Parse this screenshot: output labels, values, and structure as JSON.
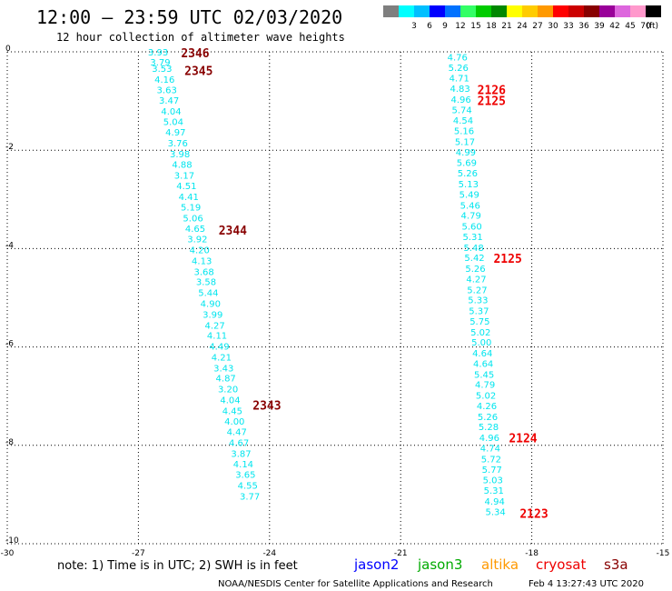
{
  "header": {
    "title": "12:00 – 23:59 UTC 02/03/2020",
    "subtitle": "12 hour collection of altimeter wave heights"
  },
  "color_scale": {
    "unit": "(ft)",
    "bins": [
      {
        "label": "",
        "color": "#7f7f7f"
      },
      {
        "label": "3",
        "color": "#00ffff"
      },
      {
        "label": "6",
        "color": "#00bfff"
      },
      {
        "label": "9",
        "color": "#0000ff"
      },
      {
        "label": "12",
        "color": "#0072ff"
      },
      {
        "label": "15",
        "color": "#33ff66"
      },
      {
        "label": "18",
        "color": "#00cc00"
      },
      {
        "label": "21",
        "color": "#008800"
      },
      {
        "label": "24",
        "color": "#ffff00"
      },
      {
        "label": "27",
        "color": "#ffcc00"
      },
      {
        "label": "30",
        "color": "#ff9900"
      },
      {
        "label": "33",
        "color": "#ff0000"
      },
      {
        "label": "36",
        "color": "#cc0000"
      },
      {
        "label": "39",
        "color": "#880000"
      },
      {
        "label": "42",
        "color": "#990099"
      },
      {
        "label": "45",
        "color": "#dd66dd"
      },
      {
        "label": "70",
        "color": "#ff99cc"
      },
      {
        "label": "",
        "color": "#000000"
      }
    ]
  },
  "axes": {
    "x_ticks": [
      "-30",
      "-27",
      "-24",
      "-21",
      "-18",
      "-15"
    ],
    "y_ticks": [
      "0",
      "-2",
      "-4",
      "-6",
      "-8",
      "-10"
    ],
    "xlim": [
      -30,
      -15
    ],
    "ylim": [
      -10,
      0
    ]
  },
  "chart_data": {
    "type": "scatter",
    "tracks": [
      {
        "color": "#00e5ee",
        "points": [
          {
            "lon": -26.55,
            "lat": 0.0,
            "swh": "3.93"
          },
          {
            "lon": -26.5,
            "lat": -0.2,
            "swh": "3.79"
          },
          {
            "lon": -26.46,
            "lat": -0.33,
            "swh": "3.53"
          },
          {
            "lon": -26.4,
            "lat": -0.55,
            "swh": "4.16"
          },
          {
            "lon": -26.35,
            "lat": -0.77,
            "swh": "3.63"
          },
          {
            "lon": -26.3,
            "lat": -0.98,
            "swh": "3.47"
          },
          {
            "lon": -26.25,
            "lat": -1.2,
            "swh": "4.04"
          },
          {
            "lon": -26.2,
            "lat": -1.41,
            "swh": "5.04"
          },
          {
            "lon": -26.15,
            "lat": -1.63,
            "swh": "4.97"
          },
          {
            "lon": -26.1,
            "lat": -1.85,
            "swh": "3.76"
          },
          {
            "lon": -26.05,
            "lat": -2.07,
            "swh": "3.98"
          },
          {
            "lon": -26.0,
            "lat": -2.28,
            "swh": "4.88"
          },
          {
            "lon": -25.95,
            "lat": -2.5,
            "swh": "3.17"
          },
          {
            "lon": -25.9,
            "lat": -2.72,
            "swh": "4.51"
          },
          {
            "lon": -25.85,
            "lat": -2.94,
            "swh": "4.41"
          },
          {
            "lon": -25.8,
            "lat": -3.15,
            "swh": "5.19"
          },
          {
            "lon": -25.75,
            "lat": -3.37,
            "swh": "5.06"
          },
          {
            "lon": -25.7,
            "lat": -3.59,
            "swh": "4.65"
          },
          {
            "lon": -25.65,
            "lat": -3.8,
            "swh": "3.92"
          },
          {
            "lon": -25.6,
            "lat": -4.02,
            "swh": "4.20"
          },
          {
            "lon": -25.55,
            "lat": -4.24,
            "swh": "4.13"
          },
          {
            "lon": -25.5,
            "lat": -4.46,
            "swh": "3.68"
          },
          {
            "lon": -25.45,
            "lat": -4.67,
            "swh": "3.58"
          },
          {
            "lon": -25.4,
            "lat": -4.89,
            "swh": "5.44"
          },
          {
            "lon": -25.35,
            "lat": -5.11,
            "swh": "4.90"
          },
          {
            "lon": -25.3,
            "lat": -5.33,
            "swh": "3.99"
          },
          {
            "lon": -25.25,
            "lat": -5.55,
            "swh": "4.27"
          },
          {
            "lon": -25.2,
            "lat": -5.76,
            "swh": "4.11"
          },
          {
            "lon": -25.15,
            "lat": -5.98,
            "swh": "4.49"
          },
          {
            "lon": -25.1,
            "lat": -6.2,
            "swh": "4.21"
          },
          {
            "lon": -25.05,
            "lat": -6.42,
            "swh": "3.43"
          },
          {
            "lon": -25.0,
            "lat": -6.63,
            "swh": "4.87"
          },
          {
            "lon": -24.95,
            "lat": -6.85,
            "swh": "3.20"
          },
          {
            "lon": -24.9,
            "lat": -7.07,
            "swh": "4.04"
          },
          {
            "lon": -24.85,
            "lat": -7.29,
            "swh": "4.45"
          },
          {
            "lon": -24.8,
            "lat": -7.5,
            "swh": "4.00"
          },
          {
            "lon": -24.75,
            "lat": -7.72,
            "swh": "4.47"
          },
          {
            "lon": -24.7,
            "lat": -7.94,
            "swh": "4.67"
          },
          {
            "lon": -24.65,
            "lat": -8.16,
            "swh": "3.87"
          },
          {
            "lon": -24.6,
            "lat": -8.37,
            "swh": "4.14"
          },
          {
            "lon": -24.55,
            "lat": -8.59,
            "swh": "3.65"
          },
          {
            "lon": -24.5,
            "lat": -8.81,
            "swh": "4.55"
          },
          {
            "lon": -24.45,
            "lat": -9.03,
            "swh": "3.77"
          }
        ],
        "pass_labels": [
          {
            "text": "2346",
            "color": "#880000",
            "lon": -25.7,
            "lat": -0.02
          },
          {
            "text": "2345",
            "color": "#880000",
            "lon": -25.62,
            "lat": -0.38
          },
          {
            "text": "2344",
            "color": "#880000",
            "lon": -24.84,
            "lat": -3.62
          },
          {
            "text": "2343",
            "color": "#880000",
            "lon": -24.06,
            "lat": -7.18
          }
        ]
      },
      {
        "color": "#00e5ee",
        "points": [
          {
            "lon": -19.7,
            "lat": -0.1,
            "swh": "4.76"
          },
          {
            "lon": -19.68,
            "lat": -0.31,
            "swh": "5.26"
          },
          {
            "lon": -19.66,
            "lat": -0.53,
            "swh": "4.71"
          },
          {
            "lon": -19.64,
            "lat": -0.74,
            "swh": "4.83"
          },
          {
            "lon": -19.62,
            "lat": -0.96,
            "swh": "4.96"
          },
          {
            "lon": -19.6,
            "lat": -1.17,
            "swh": "5.74"
          },
          {
            "lon": -19.57,
            "lat": -1.39,
            "swh": "4.54"
          },
          {
            "lon": -19.55,
            "lat": -1.6,
            "swh": "5.16"
          },
          {
            "lon": -19.53,
            "lat": -1.82,
            "swh": "5.17"
          },
          {
            "lon": -19.51,
            "lat": -2.03,
            "swh": "4.99"
          },
          {
            "lon": -19.49,
            "lat": -2.25,
            "swh": "5.69"
          },
          {
            "lon": -19.47,
            "lat": -2.46,
            "swh": "5.26"
          },
          {
            "lon": -19.45,
            "lat": -2.68,
            "swh": "5.13"
          },
          {
            "lon": -19.43,
            "lat": -2.89,
            "swh": "5.49"
          },
          {
            "lon": -19.41,
            "lat": -3.11,
            "swh": "5.46"
          },
          {
            "lon": -19.39,
            "lat": -3.32,
            "swh": "4.79"
          },
          {
            "lon": -19.37,
            "lat": -3.54,
            "swh": "5.60"
          },
          {
            "lon": -19.35,
            "lat": -3.75,
            "swh": "5.31"
          },
          {
            "lon": -19.33,
            "lat": -3.97,
            "swh": "5.48"
          },
          {
            "lon": -19.31,
            "lat": -4.18,
            "swh": "5.42"
          },
          {
            "lon": -19.29,
            "lat": -4.4,
            "swh": "5.26"
          },
          {
            "lon": -19.27,
            "lat": -4.61,
            "swh": "4.27"
          },
          {
            "lon": -19.25,
            "lat": -4.83,
            "swh": "5.27"
          },
          {
            "lon": -19.23,
            "lat": -5.04,
            "swh": "5.33"
          },
          {
            "lon": -19.21,
            "lat": -5.26,
            "swh": "5.37"
          },
          {
            "lon": -19.19,
            "lat": -5.47,
            "swh": "5.75"
          },
          {
            "lon": -19.17,
            "lat": -5.69,
            "swh": "5.02"
          },
          {
            "lon": -19.15,
            "lat": -5.9,
            "swh": "5.00"
          },
          {
            "lon": -19.13,
            "lat": -6.12,
            "swh": "4.64"
          },
          {
            "lon": -19.11,
            "lat": -6.33,
            "swh": "4.64"
          },
          {
            "lon": -19.09,
            "lat": -6.55,
            "swh": "5.45"
          },
          {
            "lon": -19.07,
            "lat": -6.76,
            "swh": "4.79"
          },
          {
            "lon": -19.05,
            "lat": -6.98,
            "swh": "5.02"
          },
          {
            "lon": -19.03,
            "lat": -7.19,
            "swh": "4.26"
          },
          {
            "lon": -19.01,
            "lat": -7.41,
            "swh": "5.26"
          },
          {
            "lon": -18.99,
            "lat": -7.62,
            "swh": "5.28"
          },
          {
            "lon": -18.97,
            "lat": -7.84,
            "swh": "4.96"
          },
          {
            "lon": -18.95,
            "lat": -8.05,
            "swh": "4.74"
          },
          {
            "lon": -18.93,
            "lat": -8.27,
            "swh": "5.72"
          },
          {
            "lon": -18.91,
            "lat": -8.48,
            "swh": "5.77"
          },
          {
            "lon": -18.89,
            "lat": -8.7,
            "swh": "5.03"
          },
          {
            "lon": -18.87,
            "lat": -8.91,
            "swh": "5.31"
          },
          {
            "lon": -18.85,
            "lat": -9.13,
            "swh": "4.94"
          },
          {
            "lon": -18.83,
            "lat": -9.34,
            "swh": "5.34"
          }
        ],
        "pass_labels": [
          {
            "text": "2126",
            "color": "#ee0000",
            "lon": -18.92,
            "lat": -0.77
          },
          {
            "text": "2125",
            "color": "#ee0000",
            "lon": -18.92,
            "lat": -0.99
          },
          {
            "text": "2125",
            "color": "#ee0000",
            "lon": -18.55,
            "lat": -4.2
          },
          {
            "text": "2124",
            "color": "#ee0000",
            "lon": -18.2,
            "lat": -7.85
          },
          {
            "text": "2123",
            "color": "#ee0000",
            "lon": -17.95,
            "lat": -9.38
          }
        ]
      }
    ]
  },
  "footer": {
    "note": "note:  1) Time is in UTC; 2) SWH is in feet",
    "satellites": [
      {
        "name": "jason2",
        "color": "#0000ff"
      },
      {
        "name": "jason3",
        "color": "#00aa00"
      },
      {
        "name": "altika",
        "color": "#ff9900"
      },
      {
        "name": "cryosat",
        "color": "#ee0000"
      },
      {
        "name": "s3a",
        "color": "#880000"
      }
    ],
    "credit": "NOAA/NESDIS Center for Satellite Applications and Research",
    "timestamp": "Feb  4 13:27:43 UTC 2020"
  }
}
